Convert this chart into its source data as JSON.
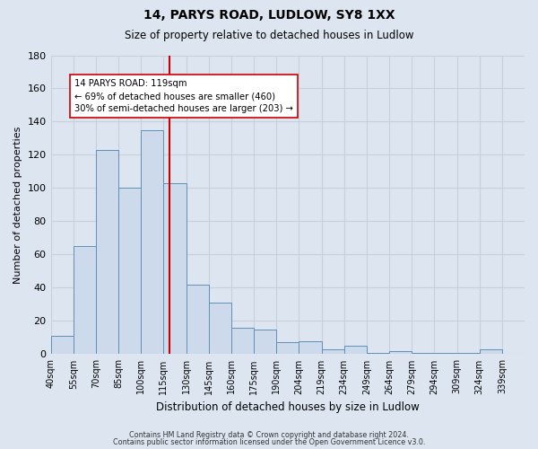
{
  "title": "14, PARYS ROAD, LUDLOW, SY8 1XX",
  "subtitle": "Size of property relative to detached houses in Ludlow",
  "xlabel": "Distribution of detached houses by size in Ludlow",
  "ylabel": "Number of detached properties",
  "bar_labels": [
    "40sqm",
    "55sqm",
    "70sqm",
    "85sqm",
    "100sqm",
    "115sqm",
    "130sqm",
    "145sqm",
    "160sqm",
    "175sqm",
    "190sqm",
    "204sqm",
    "219sqm",
    "234sqm",
    "249sqm",
    "264sqm",
    "279sqm",
    "294sqm",
    "309sqm",
    "324sqm",
    "339sqm"
  ],
  "bar_heights": [
    11,
    65,
    123,
    100,
    135,
    103,
    42,
    31,
    16,
    15,
    7,
    8,
    3,
    5,
    1,
    2,
    1,
    1,
    1,
    3,
    0
  ],
  "bar_color": "#ccdaec",
  "bar_edge_color": "#6090b8",
  "grid_color": "#c8d0dc",
  "background_color": "#dde6f0",
  "vline_x": 5,
  "vline_color": "#cc0000",
  "annotation_text": "14 PARYS ROAD: 119sqm\n← 69% of detached houses are smaller (460)\n30% of semi-detached houses are larger (203) →",
  "annotation_box_color": "#ffffff",
  "annotation_box_edge": "#cc0000",
  "ylim": [
    0,
    180
  ],
  "yticks": [
    0,
    20,
    40,
    60,
    80,
    100,
    120,
    140,
    160,
    180
  ],
  "footer1": "Contains HM Land Registry data © Crown copyright and database right 2024.",
  "footer2": "Contains public sector information licensed under the Open Government Licence v3.0."
}
